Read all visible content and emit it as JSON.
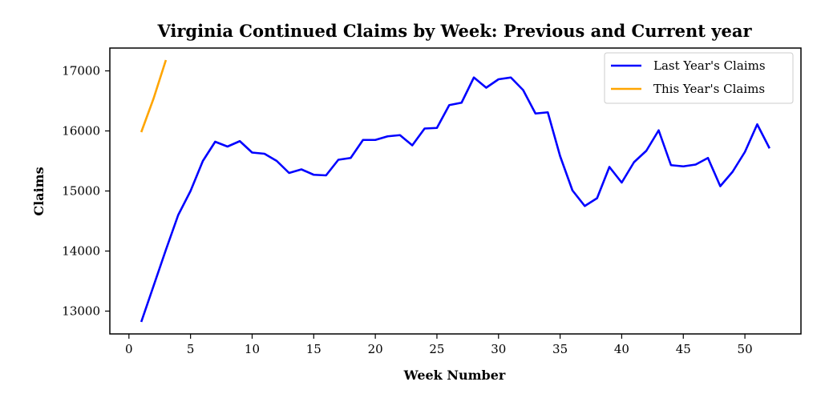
{
  "chart_data": {
    "type": "line",
    "title": "Virginia Continued Claims by Week: Previous and Current year",
    "xlabel": "Week Number",
    "ylabel": "Claims",
    "xlim": [
      -1.55,
      54.55
    ],
    "ylim": [
      12620,
      17380
    ],
    "xticks": [
      0,
      5,
      10,
      15,
      20,
      25,
      30,
      35,
      40,
      45,
      50
    ],
    "yticks": [
      13000,
      14000,
      15000,
      16000,
      17000
    ],
    "grid": false,
    "legend_position": "top-right",
    "series": [
      {
        "name": "Last Year's Claims",
        "color": "#0000ff",
        "x": [
          1,
          2,
          3,
          4,
          5,
          6,
          7,
          8,
          9,
          10,
          11,
          12,
          13,
          14,
          15,
          16,
          17,
          18,
          19,
          20,
          21,
          22,
          23,
          24,
          25,
          26,
          27,
          28,
          29,
          30,
          31,
          32,
          33,
          34,
          35,
          36,
          37,
          38,
          39,
          40,
          41,
          42,
          43,
          44,
          45,
          46,
          47,
          48,
          49,
          50,
          51,
          52
        ],
        "values": [
          12820,
          13420,
          14020,
          14600,
          15000,
          15500,
          15820,
          15740,
          15830,
          15640,
          15620,
          15500,
          15300,
          15360,
          15270,
          15260,
          15520,
          15550,
          15850,
          15850,
          15910,
          15930,
          15760,
          16040,
          16050,
          16430,
          16470,
          16890,
          16720,
          16860,
          16890,
          16680,
          16290,
          16310,
          15580,
          15010,
          14750,
          14880,
          15400,
          15140,
          15480,
          15670,
          16010,
          15430,
          15410,
          15440,
          15550,
          15080,
          15320,
          15650,
          16110,
          15710
        ]
      },
      {
        "name": "This Year's Claims",
        "color": "#ffa500",
        "x": [
          1,
          2,
          3
        ],
        "values": [
          15980,
          16540,
          17180
        ]
      }
    ]
  }
}
